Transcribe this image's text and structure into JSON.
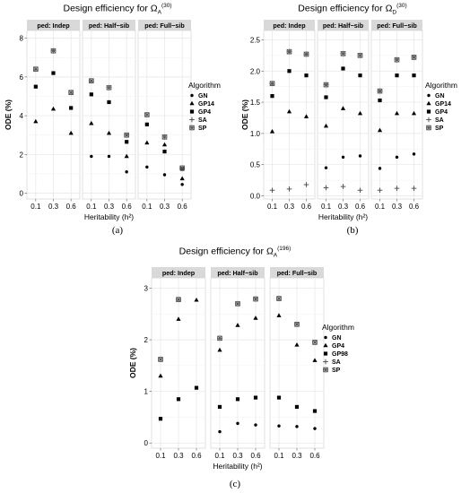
{
  "chart_data": [
    {
      "type": "scatter",
      "panel_label": "(a)",
      "title_prefix": "Design efficiency for Ω",
      "title_sub": "A",
      "title_sup": "(30)",
      "xlabel": "Heritability (h²)",
      "ylabel": "ODE (%)",
      "ylim": [
        -0.3,
        8.4
      ],
      "yticks": [
        0,
        2,
        4,
        6,
        8
      ],
      "categories": [
        "0.1",
        "0.3",
        "0.6"
      ],
      "facets": [
        "ped: Indep",
        "ped: Half−sib",
        "ped: Full−sib"
      ],
      "legend": {
        "title": "Algorithm",
        "entries": [
          "GN",
          "GP14",
          "GP4",
          "SA",
          "SP"
        ],
        "position": "right"
      },
      "grid": true,
      "series": [
        {
          "name": "GN",
          "shape": "circle",
          "values": [
            [
              null,
              null,
              null
            ],
            [
              1.9,
              1.9,
              1.1
            ],
            [
              1.35,
              0.95,
              0.45
            ]
          ]
        },
        {
          "name": "GP14",
          "shape": "triangle",
          "values": [
            [
              3.7,
              4.35,
              3.1
            ],
            [
              3.6,
              3.1,
              1.9
            ],
            [
              2.6,
              2.5,
              0.75
            ]
          ]
        },
        {
          "name": "GP4",
          "shape": "square",
          "values": [
            [
              5.5,
              6.2,
              4.4
            ],
            [
              5.1,
              4.7,
              2.65
            ],
            [
              3.55,
              2.15,
              1.25
            ]
          ]
        },
        {
          "name": "SP",
          "shape": "sp",
          "values": [
            [
              6.4,
              7.35,
              5.2
            ],
            [
              5.8,
              5.45,
              3.0
            ],
            [
              4.05,
              2.9,
              1.3
            ]
          ]
        }
      ]
    },
    {
      "type": "scatter",
      "panel_label": "(b)",
      "title_prefix": "Design efficiency for Ω",
      "title_sub": "D",
      "title_sup": "(30)",
      "xlabel": "Heritability (h²)",
      "ylabel": "ODE (%)",
      "ylim": [
        -0.05,
        2.65
      ],
      "yticks": [
        0.0,
        0.5,
        1.0,
        1.5,
        2.0,
        2.5
      ],
      "categories": [
        "0.1",
        "0.3",
        "0.6"
      ],
      "facets": [
        "ped: Indep",
        "ped: Half−sib",
        "ped: Full−sib"
      ],
      "legend": {
        "title": "Algorithm",
        "entries": [
          "GN",
          "GP14",
          "GP4",
          "SA",
          "SP"
        ],
        "position": "right"
      },
      "grid": true,
      "series": [
        {
          "name": "GN",
          "shape": "circle",
          "values": [
            [
              null,
              null,
              null
            ],
            [
              0.45,
              0.62,
              0.64
            ],
            [
              0.44,
              0.62,
              0.67
            ]
          ]
        },
        {
          "name": "GP14",
          "shape": "triangle",
          "values": [
            [
              1.03,
              1.35,
              1.27
            ],
            [
              1.12,
              1.4,
              1.32
            ],
            [
              1.05,
              1.32,
              1.32
            ]
          ]
        },
        {
          "name": "GP4",
          "shape": "square",
          "values": [
            [
              1.6,
              2.0,
              1.93
            ],
            [
              1.58,
              2.04,
              1.93
            ],
            [
              1.53,
              1.93,
              1.93
            ]
          ]
        },
        {
          "name": "SA",
          "shape": "plus",
          "values": [
            [
              0.09,
              0.11,
              0.18
            ],
            [
              0.13,
              0.15,
              0.09
            ],
            [
              0.09,
              0.12,
              0.12
            ]
          ]
        },
        {
          "name": "SP",
          "shape": "sp",
          "values": [
            [
              1.8,
              2.31,
              2.27
            ],
            [
              1.78,
              2.28,
              2.25
            ],
            [
              1.68,
              2.18,
              2.22
            ]
          ]
        }
      ]
    },
    {
      "type": "scatter",
      "panel_label": "(c)",
      "title_prefix": "Design efficiency for Ω",
      "title_sub": "A",
      "title_sup": "(196)",
      "xlabel": "Heritability (h²)",
      "ylabel": "ODE (%)",
      "ylim": [
        -0.1,
        3.2
      ],
      "yticks": [
        0,
        1,
        2,
        3
      ],
      "categories": [
        "0.1",
        "0.3",
        "0.6"
      ],
      "facets": [
        "ped: Indep",
        "ped: Half−sib",
        "ped: Full−sib"
      ],
      "legend": {
        "title": "Algorithm",
        "entries": [
          "GN",
          "GP4",
          "GP98",
          "SA",
          "SP"
        ],
        "position": "right"
      },
      "grid": true,
      "series": [
        {
          "name": "GN",
          "shape": "circle",
          "values": [
            [
              null,
              null,
              null
            ],
            [
              0.22,
              0.38,
              0.35
            ],
            [
              0.33,
              0.32,
              0.28
            ]
          ]
        },
        {
          "name": "GP4",
          "shape": "triangle",
          "values": [
            [
              1.3,
              2.4,
              2.77
            ],
            [
              1.8,
              2.28,
              2.42
            ],
            [
              2.47,
              1.9,
              1.6
            ]
          ]
        },
        {
          "name": "GP98",
          "shape": "square",
          "values": [
            [
              0.47,
              0.85,
              1.07
            ],
            [
              0.7,
              0.85,
              0.88
            ],
            [
              0.88,
              0.7,
              0.62
            ]
          ]
        },
        {
          "name": "SP",
          "shape": "sp",
          "values": [
            [
              1.62,
              2.78,
              null
            ],
            [
              2.03,
              2.7,
              2.79
            ],
            [
              2.8,
              2.3,
              1.95
            ]
          ]
        }
      ]
    }
  ]
}
